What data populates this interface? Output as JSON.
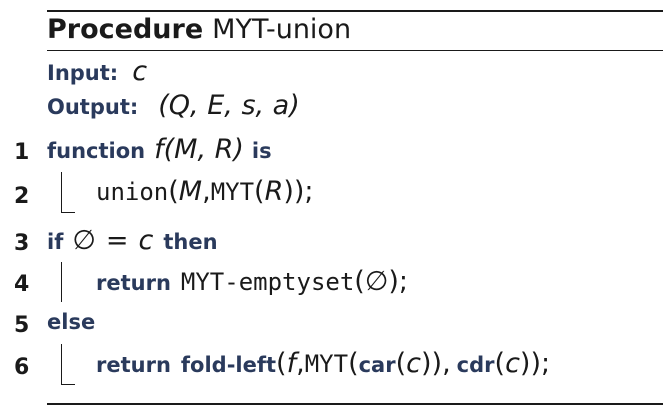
{
  "procedure": {
    "keyword": "Procedure",
    "name": "MYT-union",
    "input_label": "Input:",
    "input_value": "c",
    "output_label": "Output:",
    "output_value": "(Q, E, s, a)"
  },
  "lines": [
    {
      "number": "1",
      "kw_function": "function",
      "signature": "f(M, R)",
      "kw_is": "is"
    },
    {
      "number": "2",
      "call": "union",
      "args_open": "(",
      "arg1": "M",
      "sep": ",",
      "inner_call": "MYT",
      "inner_open": "(",
      "inner_arg": "R",
      "close": "));"
    },
    {
      "number": "3",
      "kw_if": "if",
      "cond_left": "∅",
      "cond_eq": "=",
      "cond_right": "c",
      "kw_then": "then"
    },
    {
      "number": "4",
      "kw_return": "return",
      "call": "MYT-emptyset",
      "open": "(",
      "arg": "∅",
      "close": ");"
    },
    {
      "number": "5",
      "kw_else": "else"
    },
    {
      "number": "6",
      "kw_return": "return",
      "fold": "fold-left",
      "open": "(",
      "arg_f": "f",
      "sep1": ",",
      "myt": "MYT",
      "myt_open": "(",
      "car": "car",
      "car_open": "(",
      "car_arg": "c",
      "car_close": "))",
      "sep2": ",",
      "cdr": "cdr",
      "cdr_open": "(",
      "cdr_arg": "c",
      "close": "));"
    }
  ]
}
